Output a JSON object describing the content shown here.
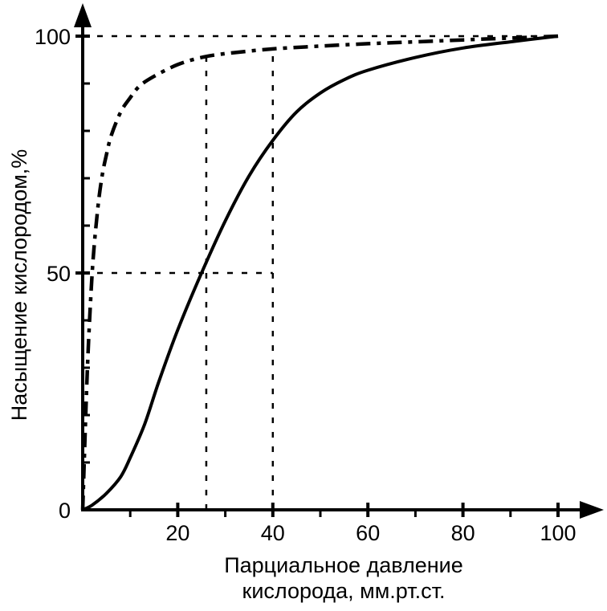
{
  "chart_data": {
    "type": "line",
    "title": "",
    "xlabel_lines": [
      "Парциальное давление",
      "кислорода,  мм.рт.ст."
    ],
    "ylabel": "Насыщение кислородом,%",
    "xlim": [
      0,
      100
    ],
    "ylim": [
      0,
      100
    ],
    "x_ticks": [
      20,
      40,
      60,
      80,
      100
    ],
    "x_minor_ticks": [
      10,
      30,
      50,
      70,
      90
    ],
    "y_ticks": [
      0,
      50,
      100
    ],
    "y_minor_ticks": [
      10,
      20,
      30,
      40,
      60,
      70,
      80,
      90
    ],
    "grid": false,
    "series": [
      {
        "style": "dash-dot",
        "x": [
          0,
          1,
          2,
          3,
          4,
          5,
          6,
          8,
          10,
          12,
          15,
          20,
          25,
          30,
          40,
          50,
          60,
          70,
          80,
          90,
          100
        ],
        "y": [
          0,
          30,
          50,
          62,
          70,
          75,
          79,
          84,
          87,
          89.5,
          91.5,
          94,
          95.5,
          96.3,
          97.3,
          97.9,
          98.4,
          98.8,
          99.2,
          99.6,
          100
        ]
      },
      {
        "style": "solid",
        "x": [
          0,
          2,
          5,
          8,
          10,
          13,
          16,
          20,
          25,
          30,
          35,
          40,
          45,
          50,
          55,
          60,
          70,
          80,
          90,
          100
        ],
        "y": [
          0,
          1,
          3.5,
          7,
          11,
          18,
          27,
          38,
          50,
          61,
          70.5,
          78,
          84,
          88,
          90.8,
          92.8,
          95.5,
          97.5,
          98.8,
          100
        ]
      }
    ],
    "reference_lines": [
      {
        "orientation": "horizontal",
        "y": 100,
        "x_from": 0,
        "x_to": 100
      },
      {
        "orientation": "horizontal",
        "y": 50,
        "x_from": 0,
        "x_to": 40
      },
      {
        "orientation": "vertical",
        "x": 26,
        "y_from": 0,
        "y_to": 95.5
      },
      {
        "orientation": "vertical",
        "x": 40,
        "y_from": 0,
        "y_to": 97.3
      }
    ]
  }
}
